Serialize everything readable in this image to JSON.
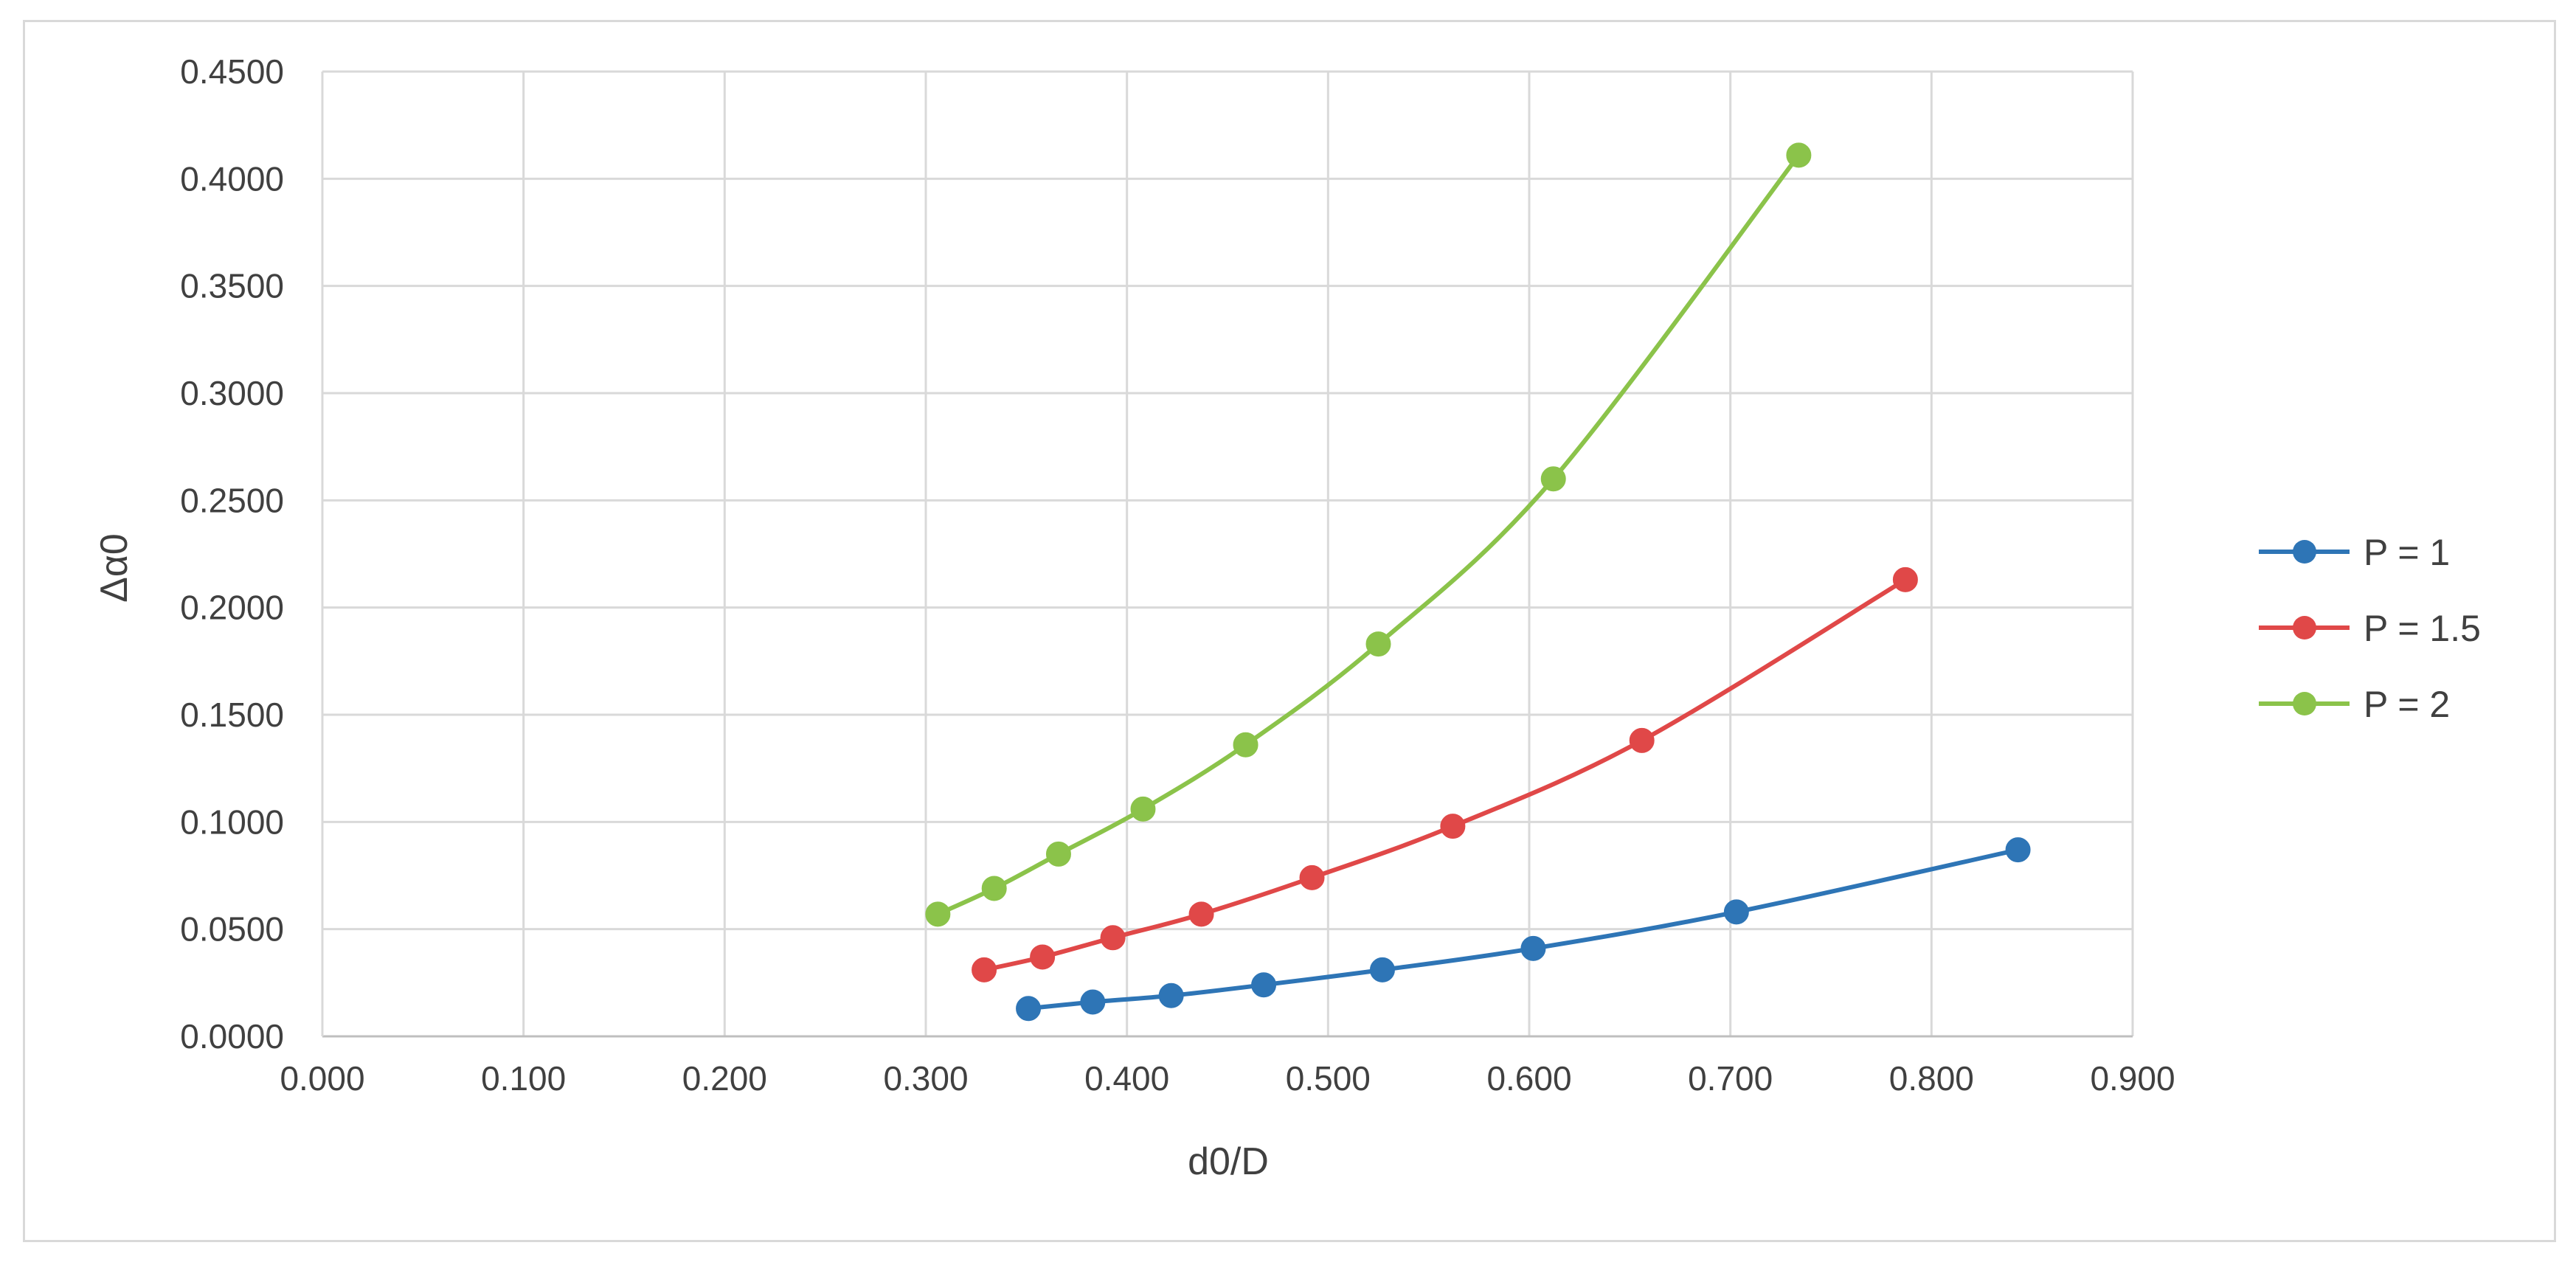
{
  "chart_data": {
    "type": "line",
    "title": "",
    "xlabel": "d0/D",
    "ylabel": "Δα0",
    "xlim": [
      0,
      0.9
    ],
    "ylim": [
      0,
      0.45
    ],
    "x_ticks": [
      "0.000",
      "0.100",
      "0.200",
      "0.300",
      "0.400",
      "0.500",
      "0.600",
      "0.700",
      "0.800",
      "0.900"
    ],
    "y_ticks": [
      "0.0000",
      "0.0500",
      "0.1000",
      "0.1500",
      "0.2000",
      "0.2500",
      "0.3000",
      "0.3500",
      "0.4000",
      "0.4500"
    ],
    "grid": true,
    "smooth": true,
    "legend_position": "right",
    "series": [
      {
        "name": "P = 1",
        "color": "#2e75b6",
        "points": [
          [
            0.351,
            0.013
          ],
          [
            0.383,
            0.016
          ],
          [
            0.422,
            0.019
          ],
          [
            0.468,
            0.024
          ],
          [
            0.527,
            0.031
          ],
          [
            0.602,
            0.041
          ],
          [
            0.703,
            0.058
          ],
          [
            0.843,
            0.087
          ]
        ]
      },
      {
        "name": "P = 1.5",
        "color": "#e04848",
        "points": [
          [
            0.329,
            0.031
          ],
          [
            0.358,
            0.037
          ],
          [
            0.393,
            0.046
          ],
          [
            0.437,
            0.057
          ],
          [
            0.492,
            0.074
          ],
          [
            0.562,
            0.098
          ],
          [
            0.656,
            0.138
          ],
          [
            0.787,
            0.213
          ]
        ]
      },
      {
        "name": "P = 2",
        "color": "#8bc34a",
        "points": [
          [
            0.306,
            0.057
          ],
          [
            0.334,
            0.069
          ],
          [
            0.366,
            0.085
          ],
          [
            0.408,
            0.106
          ],
          [
            0.459,
            0.136
          ],
          [
            0.525,
            0.183
          ],
          [
            0.612,
            0.26
          ],
          [
            0.734,
            0.411
          ]
        ]
      }
    ]
  }
}
